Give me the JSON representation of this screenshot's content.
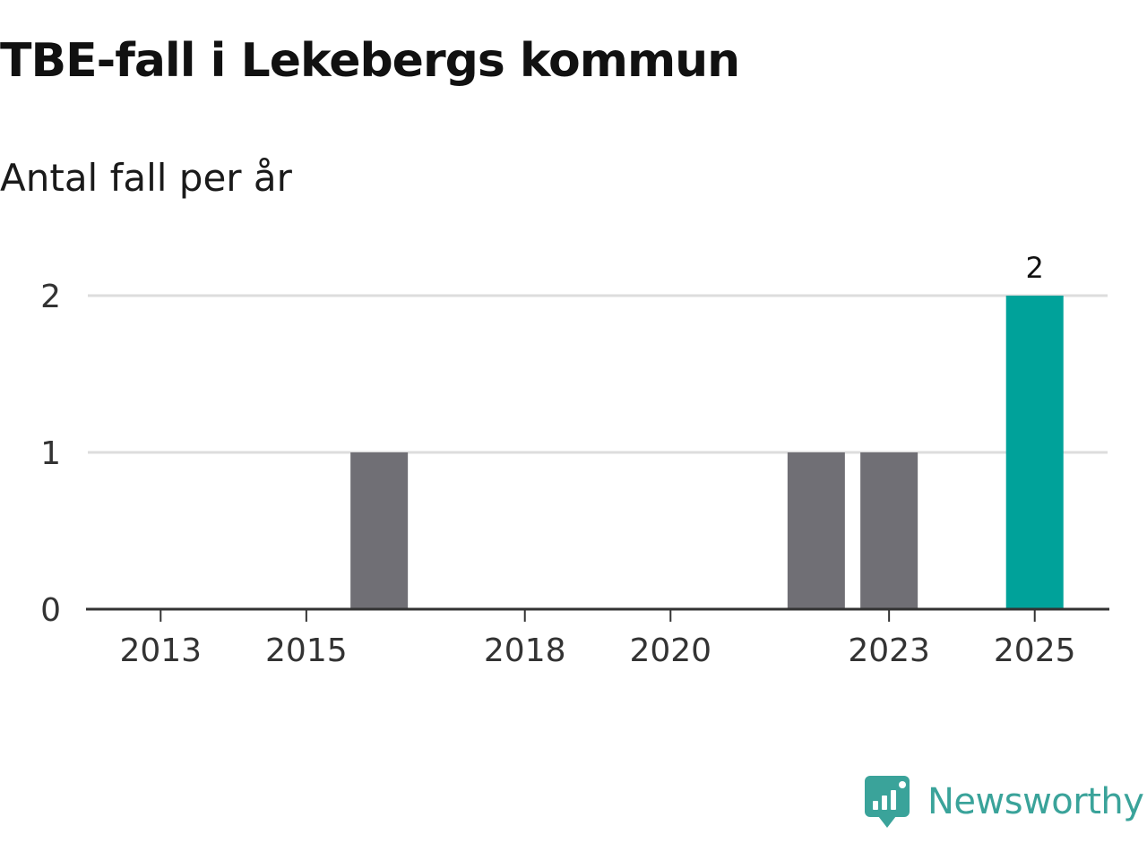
{
  "chart_data": {
    "type": "bar",
    "title": "TBE-fall i Lekebergs kommun",
    "subtitle": "Antal fall per år",
    "xlabel": "",
    "ylabel": "",
    "x_range": [
      2012,
      2026
    ],
    "ylim": [
      0,
      2
    ],
    "y_ticks": [
      "0",
      "1",
      "2"
    ],
    "x_ticks": [
      "2013",
      "2015",
      "2018",
      "2020",
      "2023",
      "2025"
    ],
    "bars": [
      {
        "year": "2016",
        "value": 1,
        "highlight": false
      },
      {
        "year": "2022",
        "value": 1,
        "highlight": false
      },
      {
        "year": "2023",
        "value": 1,
        "highlight": false
      },
      {
        "year": "2025",
        "value": 2,
        "highlight": true,
        "label": "2"
      }
    ],
    "grid": true,
    "colors": {
      "bar": "#706f75",
      "highlight": "#00a29a",
      "grid": "#dddddd",
      "axis": "#333333",
      "tick_label": "#333333"
    }
  },
  "brand": {
    "name": "Newsworthy",
    "icon": "newsworthy-logo-icon",
    "color": "#3aa39a"
  }
}
